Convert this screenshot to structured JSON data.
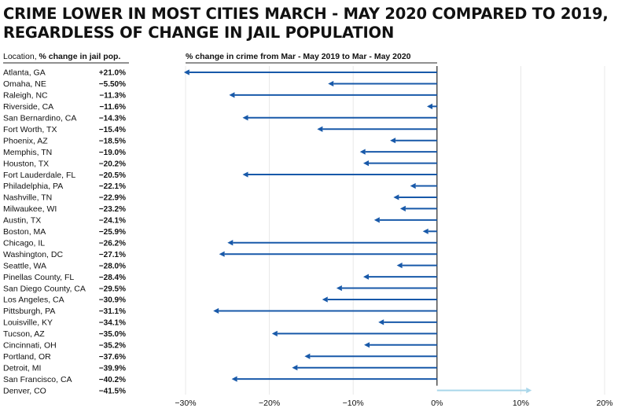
{
  "title_lines": [
    "CRIME LOWER IN MOST CITIES MARCH - MAY 2020 COMPARED TO 2019,",
    "REGARDLESS OF CHANGE IN JAIL POPULATION"
  ],
  "table_header": {
    "location": "Location, ",
    "jail": "% change in jail pop."
  },
  "chart_data": {
    "type": "arrow",
    "title": "CRIME LOWER IN MOST CITIES MARCH - MAY 2020 COMPARED TO 2019, REGARDLESS OF CHANGE IN JAIL POPULATION",
    "xlabel": "% change in crime from Mar - May 2019 to Mar - May 2020",
    "xlim": [
      -0.3,
      0.2
    ],
    "xticks": [
      -0.3,
      -0.2,
      -0.1,
      0,
      0.1,
      0.2
    ],
    "xtick_labels": [
      "−30%",
      "−20%",
      "−10%",
      "0%",
      "10%",
      "20%"
    ],
    "grid": true,
    "colors": {
      "decrease": "#1859a9",
      "increase": "#a9d6ea",
      "grid": "#e8e8e8",
      "zero_line": "#222222"
    },
    "rows": [
      {
        "location": "Atlanta, GA",
        "jail_change": "+21.0%",
        "crime_change": -0.302
      },
      {
        "location": "Omaha, NE",
        "jail_change": "−5.50%",
        "crime_change": -0.13
      },
      {
        "location": "Raleigh, NC",
        "jail_change": "−11.3%",
        "crime_change": -0.248
      },
      {
        "location": "Riverside, CA",
        "jail_change": "−11.6%",
        "crime_change": -0.012
      },
      {
        "location": "San Bernardino, CA",
        "jail_change": "−14.3%",
        "crime_change": -0.232
      },
      {
        "location": "Fort Worth, TX",
        "jail_change": "−15.4%",
        "crime_change": -0.143
      },
      {
        "location": "Phoenix, AZ",
        "jail_change": "−18.5%",
        "crime_change": -0.056
      },
      {
        "location": "Memphis, TN",
        "jail_change": "−19.0%",
        "crime_change": -0.092
      },
      {
        "location": "Houston, TX",
        "jail_change": "−20.2%",
        "crime_change": -0.088
      },
      {
        "location": "Fort Lauderdale, FL",
        "jail_change": "−20.5%",
        "crime_change": -0.232
      },
      {
        "location": "Philadelphia, PA",
        "jail_change": "−22.1%",
        "crime_change": -0.032
      },
      {
        "location": "Nashville, TN",
        "jail_change": "−22.9%",
        "crime_change": -0.052
      },
      {
        "location": "Milwaukee, WI",
        "jail_change": "−23.2%",
        "crime_change": -0.044
      },
      {
        "location": "Austin, TX",
        "jail_change": "−24.1%",
        "crime_change": -0.075
      },
      {
        "location": "Boston, MA",
        "jail_change": "−25.9%",
        "crime_change": -0.017
      },
      {
        "location": "Chicago, IL",
        "jail_change": "−26.2%",
        "crime_change": -0.25
      },
      {
        "location": "Washington, DC",
        "jail_change": "−27.1%",
        "crime_change": -0.26
      },
      {
        "location": "Seattle, WA",
        "jail_change": "−28.0%",
        "crime_change": -0.048
      },
      {
        "location": "Pinellas County, FL",
        "jail_change": "−28.4%",
        "crime_change": -0.088
      },
      {
        "location": "San Diego County, CA",
        "jail_change": "−29.5%",
        "crime_change": -0.12
      },
      {
        "location": "Los Angeles, CA",
        "jail_change": "−30.9%",
        "crime_change": -0.137
      },
      {
        "location": "Pittsburgh, PA",
        "jail_change": "−31.1%",
        "crime_change": -0.267
      },
      {
        "location": "Louisville, KY",
        "jail_change": "−34.1%",
        "crime_change": -0.07
      },
      {
        "location": "Tucson, AZ",
        "jail_change": "−35.0%",
        "crime_change": -0.197
      },
      {
        "location": "Cincinnati, OH",
        "jail_change": "−35.2%",
        "crime_change": -0.087
      },
      {
        "location": "Portland, OR",
        "jail_change": "−37.6%",
        "crime_change": -0.158
      },
      {
        "location": "Detroit, MI",
        "jail_change": "−39.9%",
        "crime_change": -0.173
      },
      {
        "location": "San Francisco, CA",
        "jail_change": "−40.2%",
        "crime_change": -0.245
      },
      {
        "location": "Denver, CO",
        "jail_change": "−41.5%",
        "crime_change": 0.113
      }
    ]
  }
}
